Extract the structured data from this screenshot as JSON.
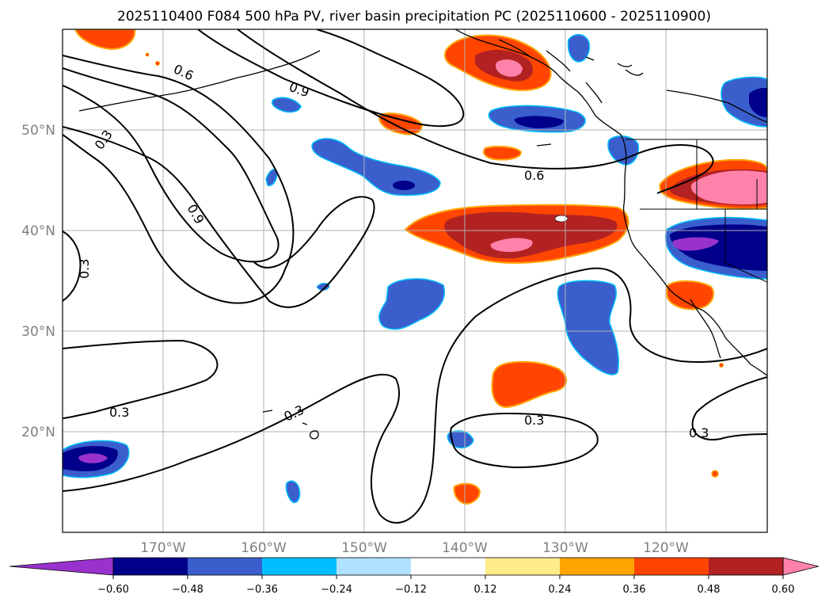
{
  "title": "2025110400 F084 500 hPa PV, river basin precipitation PC (2025110600 - 2025110900)",
  "map": {
    "lat_labels": [
      "50°N",
      "40°N",
      "30°N",
      "20°N"
    ],
    "lon_labels": [
      "170°W",
      "160°W",
      "150°W",
      "140°W",
      "130°W",
      "120°W"
    ],
    "gridlines": true
  },
  "contour_labels": [
    "0.6",
    "0.9",
    "0.3",
    "0.9",
    "0.6",
    "0.3",
    "0.3",
    "0.3",
    "0.3",
    "0.3"
  ],
  "colorbar": {
    "ticks": [
      "−0.60",
      "−0.48",
      "−0.36",
      "−0.24",
      "−0.12",
      "0.12",
      "0.24",
      "0.36",
      "0.48",
      "0.60"
    ],
    "colors": [
      "#9932cc",
      "#00008b",
      "#3a5fcd",
      "#00bfff",
      "#b0e2ff",
      "#ffffff",
      "#ffec8b",
      "#ffa500",
      "#ff4500",
      "#b22222",
      "#ff82ab"
    ],
    "extend": "both"
  }
}
